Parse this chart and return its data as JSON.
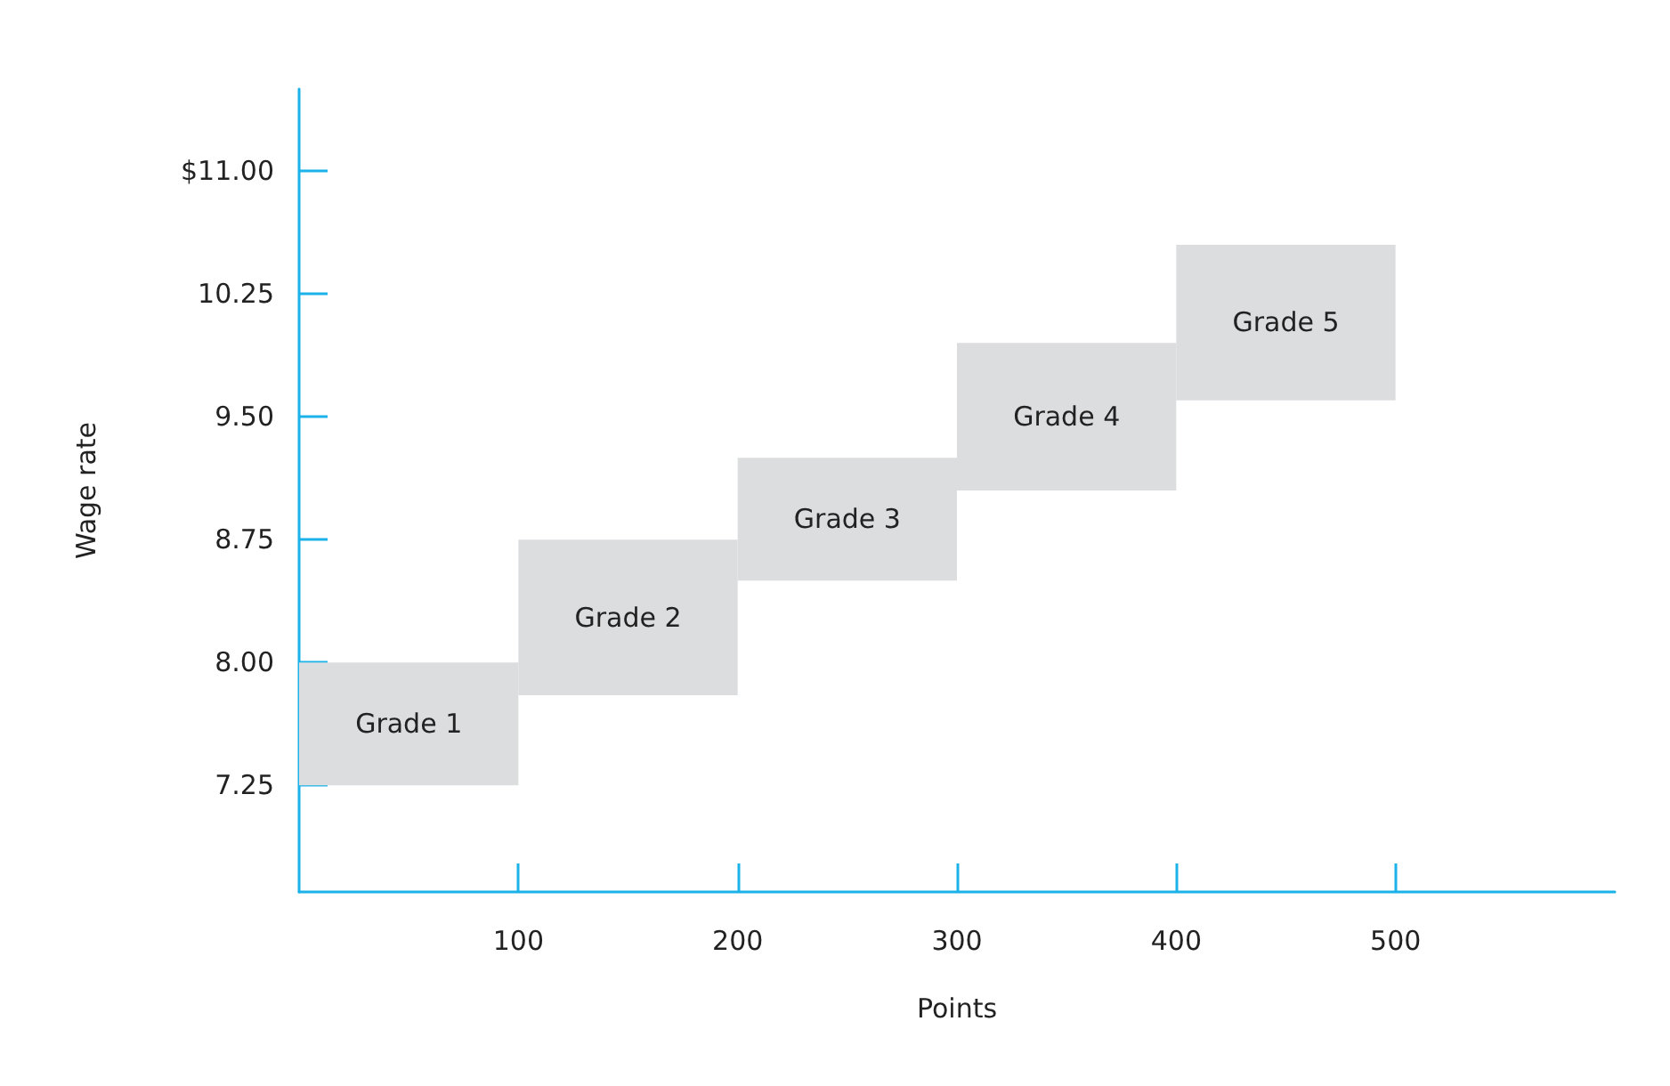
{
  "chart_data": {
    "type": "bar",
    "xlabel": "Points",
    "ylabel": "Wage rate",
    "x": [
      50,
      150,
      250,
      350,
      450
    ],
    "base": [
      7.25,
      7.8,
      8.5,
      9.05,
      9.6
    ],
    "values": [
      0.75,
      0.95,
      0.75,
      0.9,
      0.95
    ],
    "value_labels": [
      "Grade 1",
      "Grade 2",
      "Grade 3",
      "Grade 4",
      "Grade 5"
    ],
    "color": "#dcdddf",
    "xlim": [
      0,
      600
    ],
    "xticks": [
      100,
      200,
      300,
      400,
      500
    ],
    "ylim": [
      6.6,
      11.5
    ],
    "yticks": [
      {
        "value": 7.25,
        "label": "7.25"
      },
      {
        "value": 8,
        "label": "8.00"
      },
      {
        "value": 8.75,
        "label": "8.75"
      },
      {
        "value": 9.5,
        "label": "9.50"
      },
      {
        "value": 10.25,
        "label": "10.25"
      },
      {
        "value": 11,
        "label": "$11.00"
      }
    ],
    "grid": false
  }
}
